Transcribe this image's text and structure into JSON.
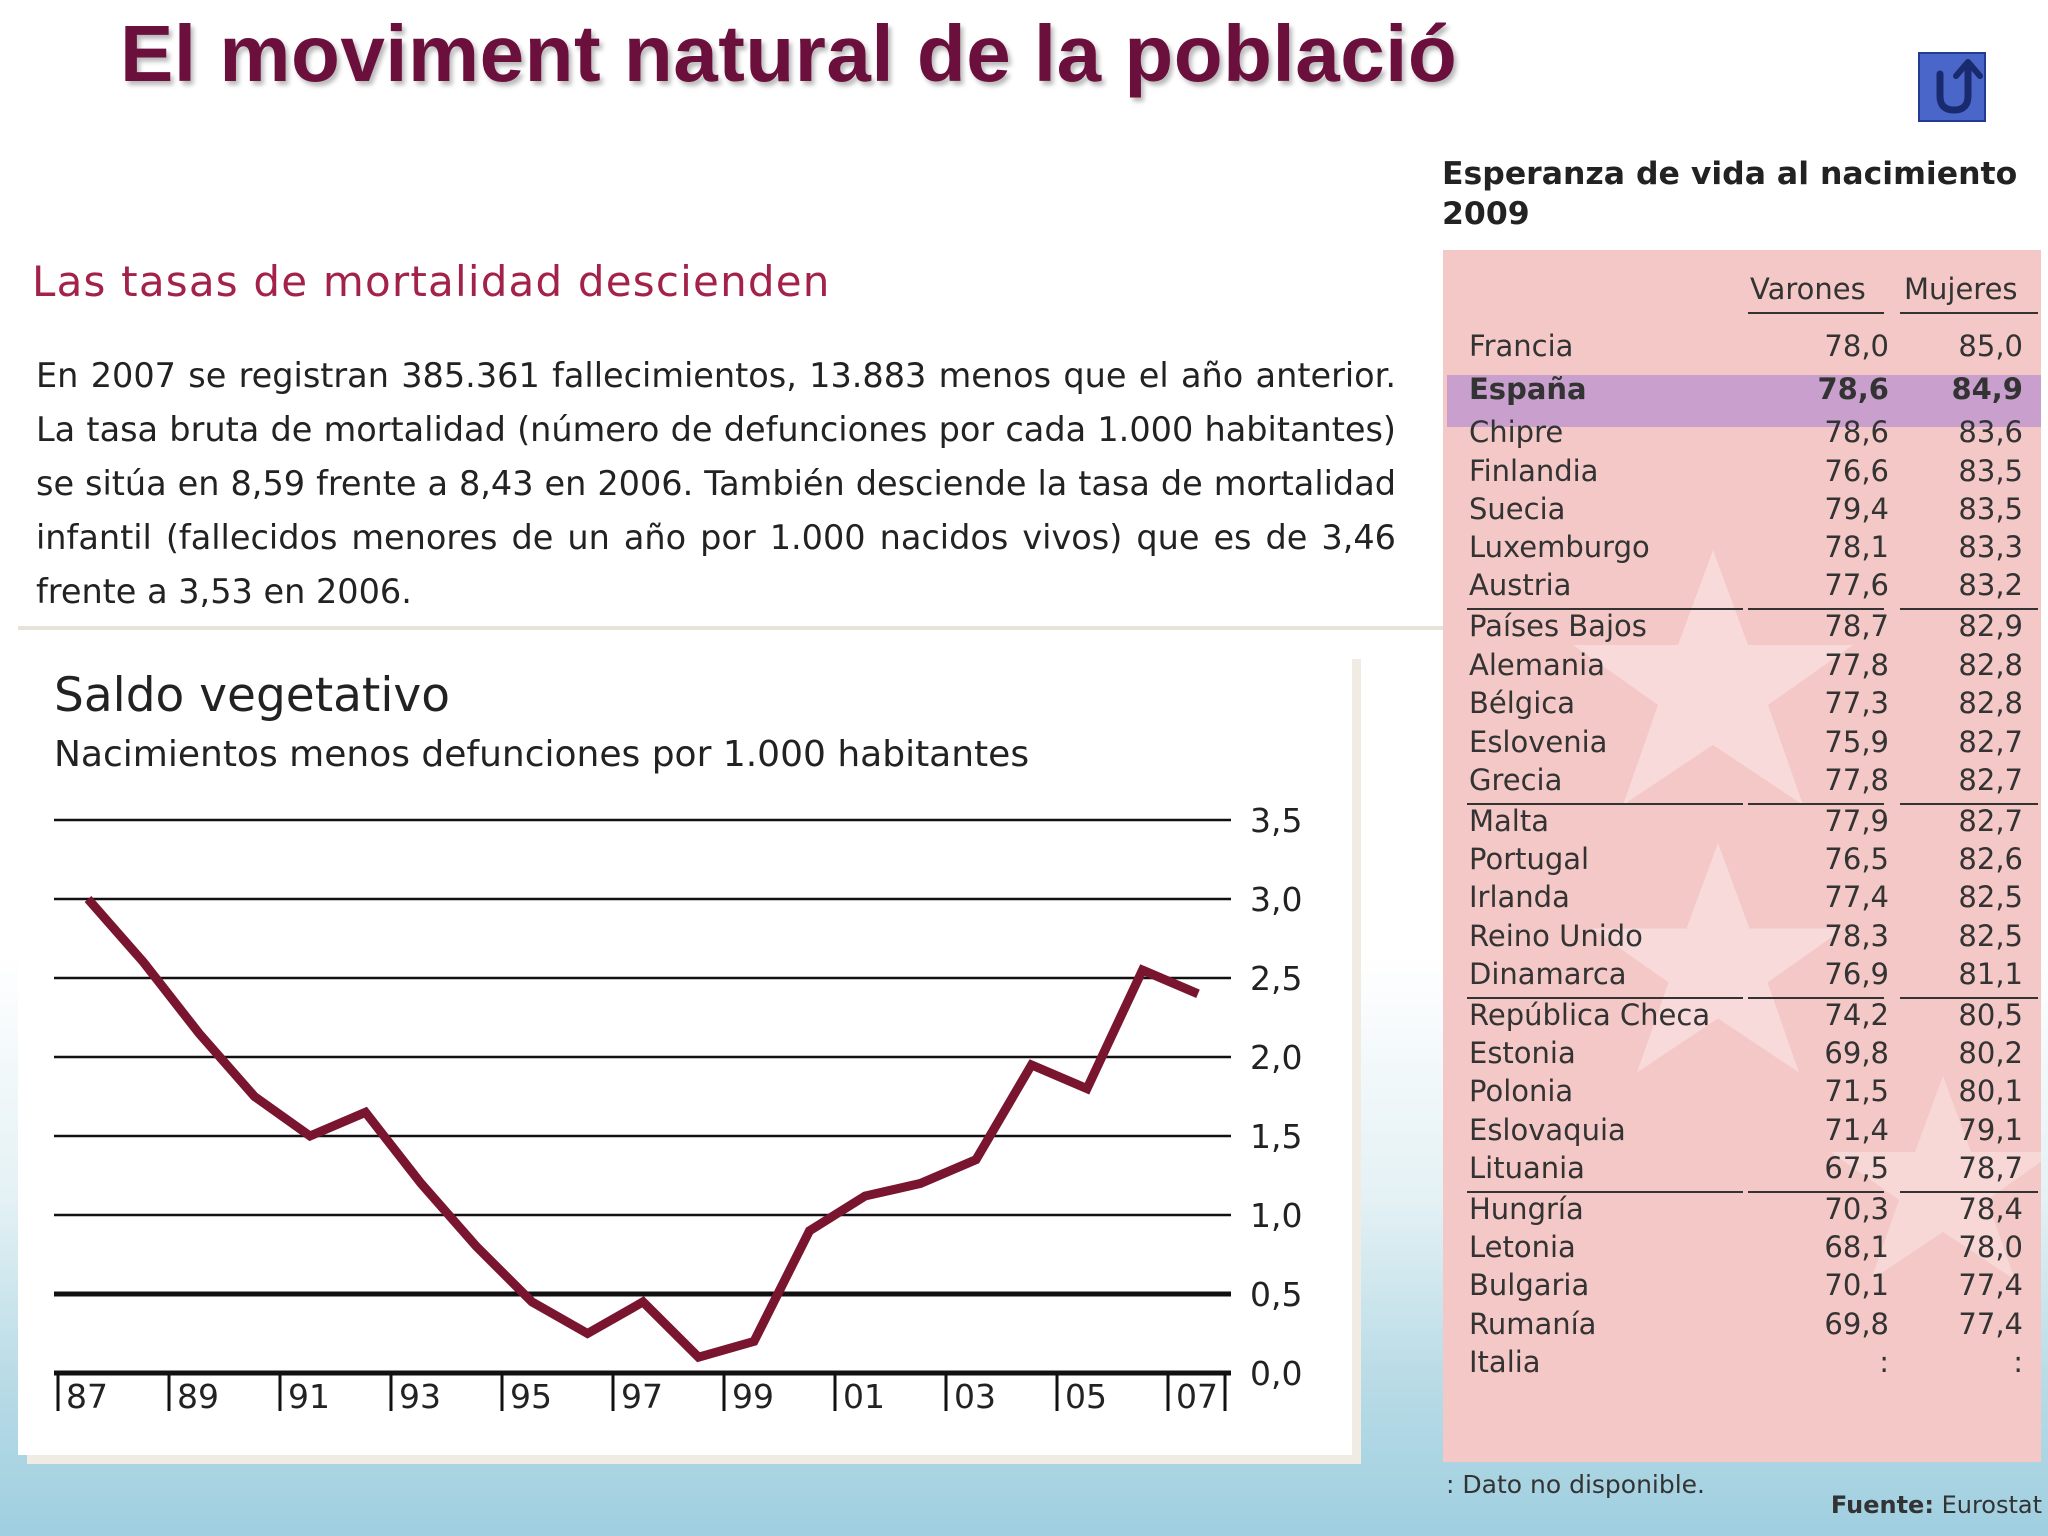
{
  "title": "El moviment natural de la població",
  "back_button_icon": "u-turn-arrow-icon",
  "subtitle": "Las tasas de mortalidad descienden",
  "paragraph": "En 2007 se registran 385.361 fallecimientos, 13.883 menos que el año anterior. La tasa bruta de mortalidad (número de defunciones por cada 1.000 habitantes) se sitúa en 8,59 frente a 8,43 en 2006. También desciende la tasa de mortalidad infantil (fallecidos menores de un año por 1.000 nacidos vivos) que es de 3,46 frente a 3,53 en 2006.",
  "chart_data": {
    "type": "line",
    "title": "Saldo vegetativo",
    "subtitle": "Nacimientos menos defunciones por 1.000 habitantes",
    "x": [
      1987,
      1988,
      1989,
      1990,
      1991,
      1992,
      1993,
      1994,
      1995,
      1996,
      1997,
      1998,
      1999,
      2000,
      2001,
      2002,
      2003,
      2004,
      2005,
      2006,
      2007
    ],
    "x_tick_labels": [
      "87",
      "89",
      "91",
      "93",
      "95",
      "97",
      "99",
      "01",
      "03",
      "05",
      "07"
    ],
    "y_tick_labels": [
      "0,0",
      "0,5",
      "1,0",
      "1,5",
      "2,0",
      "2,5",
      "3,0",
      "3,5"
    ],
    "ylim": [
      0,
      3.5
    ],
    "series": [
      {
        "values": [
          3.0,
          2.6,
          2.15,
          1.75,
          1.5,
          1.65,
          1.2,
          0.8,
          0.45,
          0.25,
          0.45,
          0.1,
          0.2,
          0.9,
          1.12,
          1.2,
          1.35,
          1.95,
          1.8,
          2.55,
          2.4
        ]
      }
    ],
    "line_color": "#7a1530",
    "grid": true
  },
  "table": {
    "heading_line1": "Esperanza de vida al nacimiento",
    "heading_line2": "2009",
    "col_men": "Varones",
    "col_women": "Mujeres",
    "rows": [
      {
        "country": "Francia",
        "men": "78,0",
        "women": "85,0"
      },
      {
        "country": "España",
        "men": "78,6",
        "women": "84,9",
        "highlight": true
      },
      {
        "country": "Chipre",
        "men": "78,6",
        "women": "83,6"
      },
      {
        "country": "Finlandia",
        "men": "76,6",
        "women": "83,5"
      },
      {
        "country": "Suecia",
        "men": "79,4",
        "women": "83,5"
      },
      {
        "country": "Luxemburgo",
        "men": "78,1",
        "women": "83,3"
      },
      {
        "country": "Austria",
        "men": "77,6",
        "women": "83,2"
      },
      {
        "country": "Países Bajos",
        "men": "78,7",
        "women": "82,9"
      },
      {
        "country": "Alemania",
        "men": "77,8",
        "women": "82,8"
      },
      {
        "country": "Bélgica",
        "men": "77,3",
        "women": "82,8"
      },
      {
        "country": "Eslovenia",
        "men": "75,9",
        "women": "82,7"
      },
      {
        "country": "Grecia",
        "men": "77,8",
        "women": "82,7"
      },
      {
        "country": "Malta",
        "men": "77,9",
        "women": "82,7"
      },
      {
        "country": "Portugal",
        "men": "76,5",
        "women": "82,6"
      },
      {
        "country": "Irlanda",
        "men": "77,4",
        "women": "82,5"
      },
      {
        "country": "Reino Unido",
        "men": "78,3",
        "women": "82,5"
      },
      {
        "country": "Dinamarca",
        "men": "76,9",
        "women": "81,1"
      },
      {
        "country": "República Checa",
        "men": "74,2",
        "women": "80,5"
      },
      {
        "country": "Estonia",
        "men": "69,8",
        "women": "80,2"
      },
      {
        "country": "Polonia",
        "men": "71,5",
        "women": "80,1"
      },
      {
        "country": "Eslovaquia",
        "men": "71,4",
        "women": "79,1"
      },
      {
        "country": "Lituania",
        "men": "67,5",
        "women": "78,7"
      },
      {
        "country": "Hungría",
        "men": "70,3",
        "women": "78,4"
      },
      {
        "country": "Letonia",
        "men": "68,1",
        "women": "78,0"
      },
      {
        "country": "Bulgaria",
        "men": "70,1",
        "women": "77,4"
      },
      {
        "country": "Rumanía",
        "men": "69,8",
        "women": "77,4"
      },
      {
        "country": "Italia",
        "men": ":",
        "women": ":"
      }
    ],
    "note": ": Dato no disponible.",
    "source_label": "Fuente:",
    "source_value": "Eurostat"
  }
}
